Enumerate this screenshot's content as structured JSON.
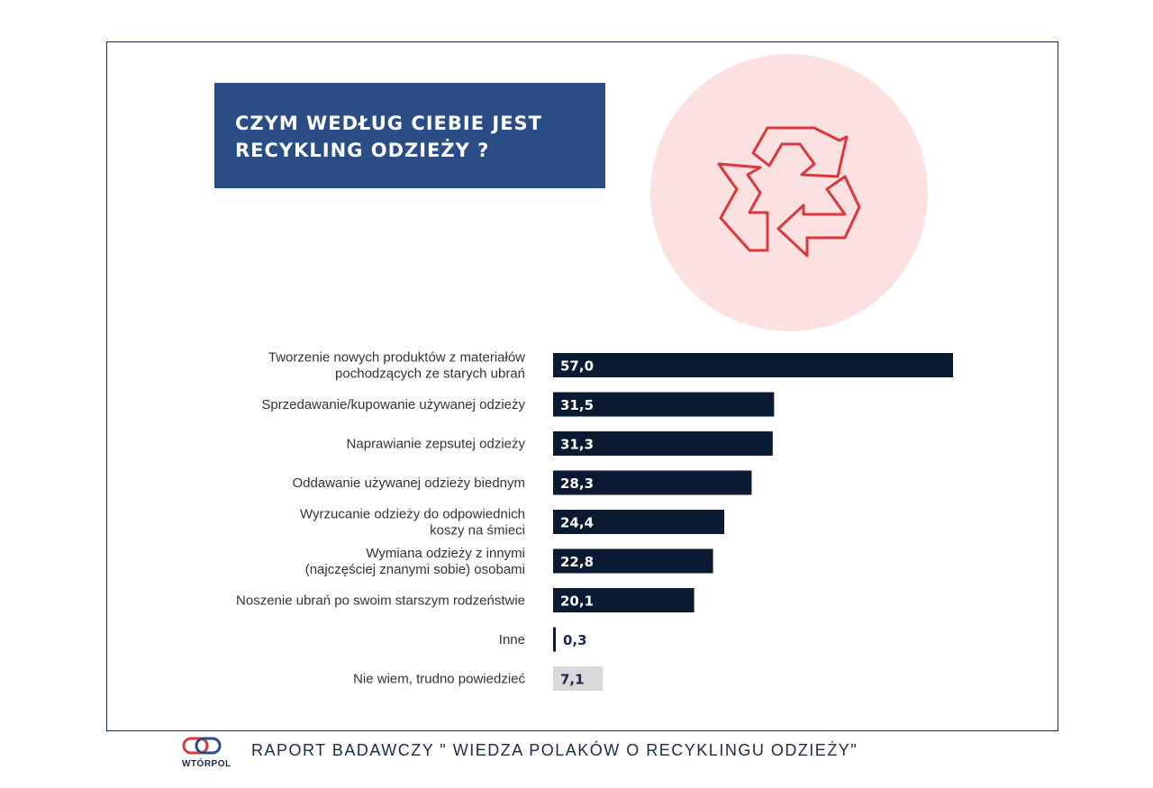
{
  "title": {
    "line1": "CZYM WEDŁUG CIEBIE JEST",
    "line2": "RECYKLING ODZIEŻY ?"
  },
  "colors": {
    "title_bg": "#2b4d86",
    "bar_main": "#0b1a33",
    "bar_unsure": "#d9d9d9",
    "circle_bg": "#fde0e0",
    "icon_stroke": "#d9383c"
  },
  "icon": "recycle-icon",
  "chart_data": {
    "type": "bar",
    "orientation": "horizontal",
    "categories": [
      [
        "Tworzenie nowych produktów z materiałów",
        "pochodzących ze starych ubrań"
      ],
      [
        "Sprzedawanie/kupowanie używanej odzieży"
      ],
      [
        "Naprawianie zepsutej odzieży"
      ],
      [
        "Oddawanie używanej odzieży biednym"
      ],
      [
        "Wyrzucanie odzieży do odpowiednich",
        "koszy na śmieci"
      ],
      [
        "Wymiana odzieży z innymi",
        "(najczęściej znanymi sobie) osobami"
      ],
      [
        "Noszenie ubrań po swoim starszym rodzeństwie"
      ],
      [
        "Inne"
      ],
      [
        "Nie wiem, trudno powiedzieć"
      ]
    ],
    "values": [
      57.0,
      31.5,
      31.3,
      28.3,
      24.4,
      22.8,
      20.1,
      0.3,
      7.1
    ],
    "value_labels": [
      "57,0",
      "31,5",
      "31,3",
      "28,3",
      "24,4",
      "22,8",
      "20,1",
      "0,3",
      "7,1"
    ],
    "highlight": [
      false,
      false,
      false,
      false,
      false,
      false,
      false,
      false,
      true
    ],
    "xlim": [
      0,
      57
    ]
  },
  "footer": {
    "logo_text": "WTÓRPOL",
    "report_title": "RAPORT BADAWCZY \" WIEDZA POLAKÓW O RECYKLINGU ODZIEŻY\""
  }
}
